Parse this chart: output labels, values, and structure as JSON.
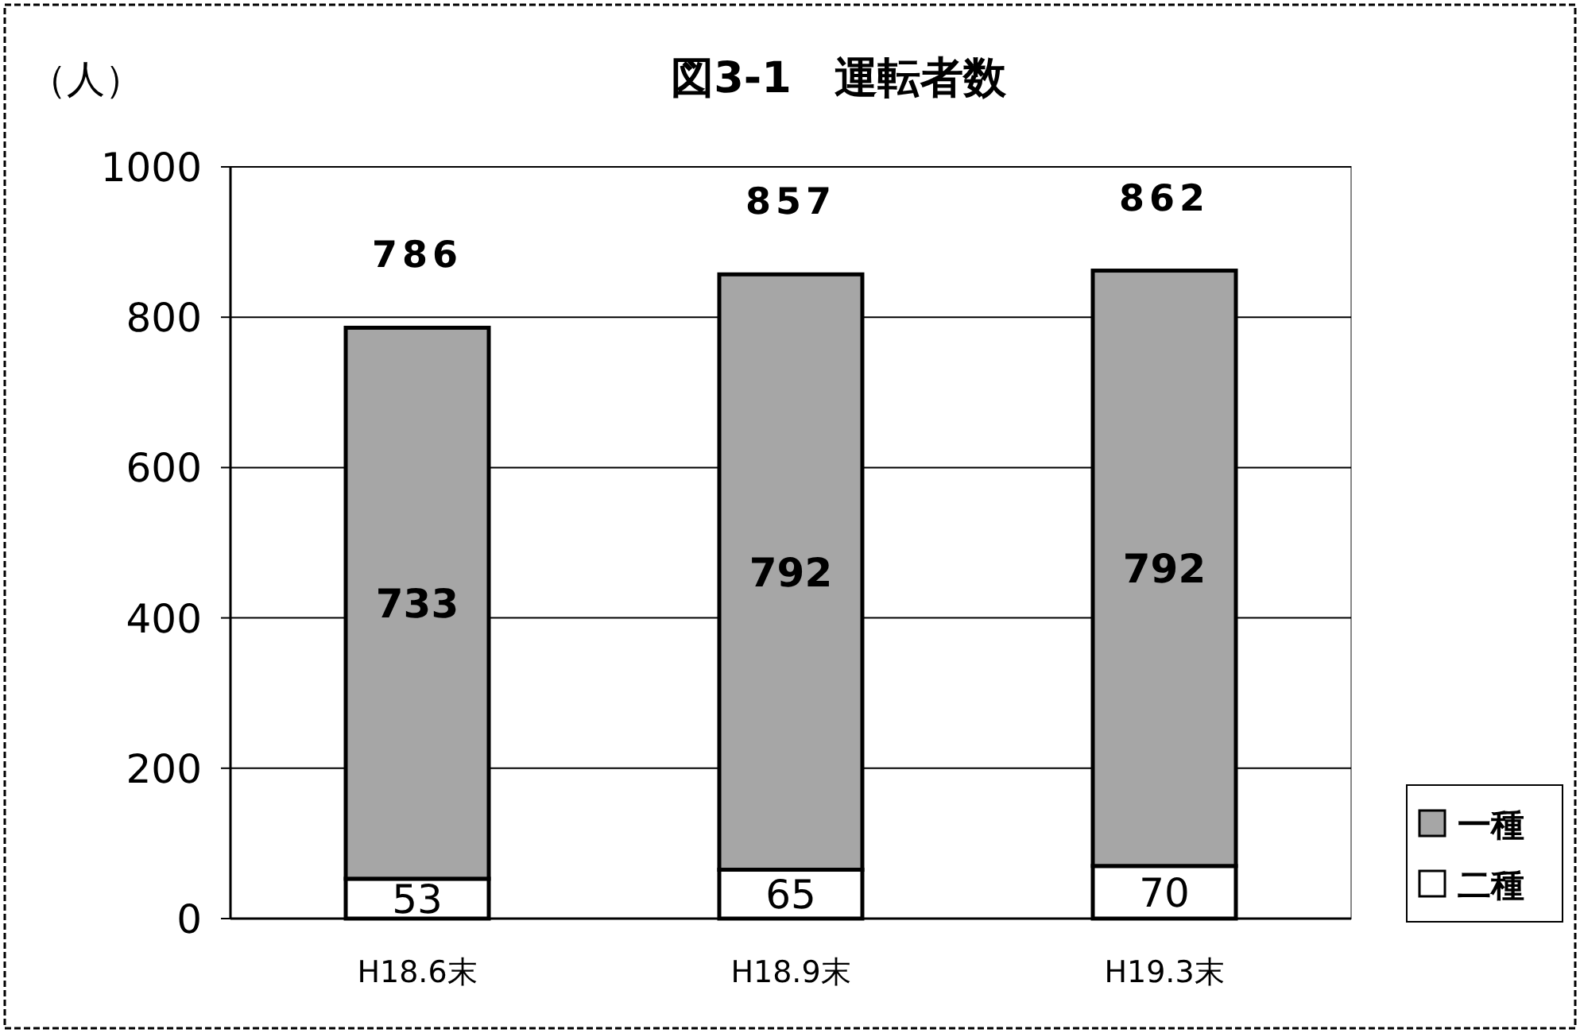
{
  "chart_data": {
    "type": "bar",
    "title": "図3-1　運転者数",
    "ylabel": "（人）",
    "categories": [
      "H18.6末",
      "H18.9末",
      "H19.3末"
    ],
    "stacked": true,
    "series": [
      {
        "name": "二種",
        "color": "#ffffff",
        "values": [
          53,
          65,
          70
        ]
      },
      {
        "name": "一種",
        "color": "#a6a6a6",
        "values": [
          733,
          792,
          792
        ]
      }
    ],
    "totals": [
      "786",
      "857",
      "862"
    ],
    "data_labels": true,
    "ylim": [
      0,
      1000
    ],
    "yticks": [
      0,
      200,
      400,
      600,
      800,
      1000
    ],
    "grid": "y",
    "legend": "bottom right"
  }
}
